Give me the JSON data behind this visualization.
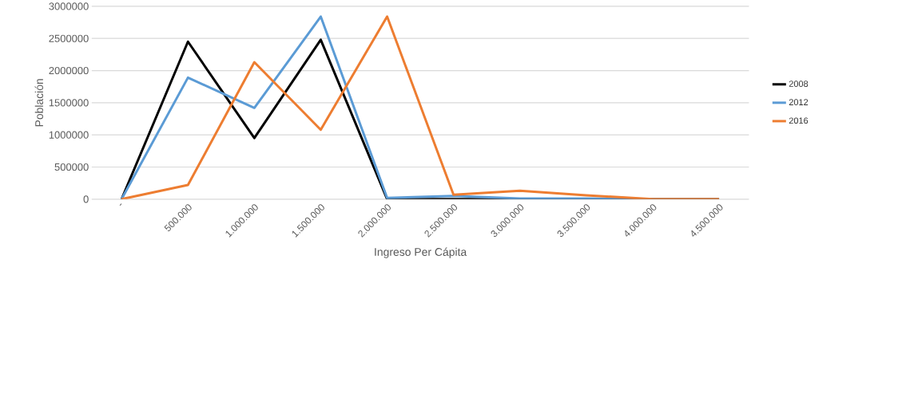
{
  "chart_data": {
    "type": "line",
    "xlabel": "Ingreso Per Cápita",
    "ylabel": "Población",
    "categories": [
      "-",
      "500.000",
      "1.000.000",
      "1.500.000",
      "2.000.000",
      "2.500.000",
      "3.000.000",
      "3.500.000",
      "4.000.000",
      "4.500.000"
    ],
    "series": [
      {
        "name": "2008",
        "color": "#000000",
        "values": [
          0,
          2450000,
          950000,
          2480000,
          0,
          0,
          0,
          0,
          0,
          0
        ]
      },
      {
        "name": "2012",
        "color": "#5b9bd5",
        "values": [
          0,
          1890000,
          1420000,
          2840000,
          20000,
          50000,
          10000,
          10000,
          0,
          0
        ]
      },
      {
        "name": "2016",
        "color": "#ed7d31",
        "values": [
          0,
          220000,
          2130000,
          1080000,
          2840000,
          70000,
          130000,
          60000,
          0,
          0
        ]
      }
    ],
    "ylim": [
      0,
      3000000
    ],
    "yticks": [
      0,
      500000,
      1000000,
      1500000,
      2000000,
      2500000,
      3000000
    ],
    "grid": "y",
    "legend": "right",
    "marker": "none",
    "line_style": "solid"
  }
}
